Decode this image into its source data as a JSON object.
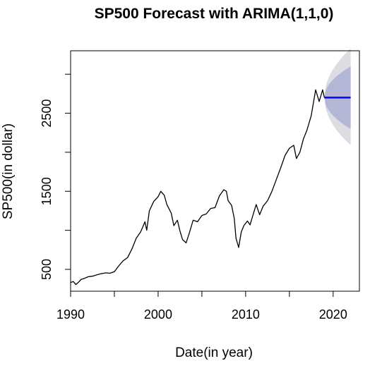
{
  "chart_data": {
    "type": "line",
    "title": "SP500 Forecast with ARIMA(1,1,0)",
    "xlabel": "Date(in year)",
    "ylabel": "SP500(in dollar)",
    "xlim": [
      1990,
      2023
    ],
    "ylim": [
      220,
      3300
    ],
    "x_ticks": [
      1990,
      1995,
      2000,
      2005,
      2010,
      2015,
      2020
    ],
    "x_tick_labels": [
      "1990",
      "",
      "2000",
      "",
      "2010",
      "",
      "2020"
    ],
    "y_ticks": [
      500,
      1000,
      1500,
      2000,
      2500,
      3000
    ],
    "y_tick_labels": [
      "500",
      "",
      "1500",
      "",
      "2500",
      ""
    ],
    "series": [
      {
        "type": "line",
        "color": "#000000",
        "points": [
          [
            1990.0,
            330
          ],
          [
            1990.3,
            345
          ],
          [
            1990.6,
            305
          ],
          [
            1990.9,
            335
          ],
          [
            1991.2,
            372
          ],
          [
            1991.6,
            385
          ],
          [
            1992.0,
            405
          ],
          [
            1992.5,
            412
          ],
          [
            1993.0,
            430
          ],
          [
            1993.5,
            445
          ],
          [
            1994.0,
            455
          ],
          [
            1994.5,
            450
          ],
          [
            1995.0,
            470
          ],
          [
            1995.5,
            545
          ],
          [
            1996.0,
            610
          ],
          [
            1996.5,
            650
          ],
          [
            1997.0,
            760
          ],
          [
            1997.5,
            900
          ],
          [
            1998.0,
            980
          ],
          [
            1998.5,
            1110
          ],
          [
            1998.7,
            1000
          ],
          [
            1999.0,
            1250
          ],
          [
            1999.5,
            1370
          ],
          [
            2000.0,
            1430
          ],
          [
            2000.3,
            1500
          ],
          [
            2000.7,
            1450
          ],
          [
            2001.0,
            1330
          ],
          [
            2001.5,
            1220
          ],
          [
            2001.8,
            1060
          ],
          [
            2002.2,
            1130
          ],
          [
            2002.5,
            990
          ],
          [
            2002.8,
            880
          ],
          [
            2003.2,
            840
          ],
          [
            2003.6,
            980
          ],
          [
            2004.0,
            1130
          ],
          [
            2004.5,
            1110
          ],
          [
            2005.0,
            1190
          ],
          [
            2005.5,
            1210
          ],
          [
            2006.0,
            1280
          ],
          [
            2006.5,
            1290
          ],
          [
            2007.0,
            1440
          ],
          [
            2007.5,
            1520
          ],
          [
            2007.8,
            1500
          ],
          [
            2008.0,
            1380
          ],
          [
            2008.4,
            1320
          ],
          [
            2008.7,
            1150
          ],
          [
            2008.9,
            900
          ],
          [
            2009.2,
            780
          ],
          [
            2009.5,
            980
          ],
          [
            2009.8,
            1060
          ],
          [
            2010.2,
            1120
          ],
          [
            2010.5,
            1070
          ],
          [
            2010.8,
            1180
          ],
          [
            2011.2,
            1330
          ],
          [
            2011.6,
            1200
          ],
          [
            2012.0,
            1310
          ],
          [
            2012.5,
            1380
          ],
          [
            2013.0,
            1500
          ],
          [
            2013.5,
            1650
          ],
          [
            2014.0,
            1800
          ],
          [
            2014.5,
            1960
          ],
          [
            2015.0,
            2050
          ],
          [
            2015.5,
            2090
          ],
          [
            2015.8,
            1920
          ],
          [
            2016.2,
            2000
          ],
          [
            2016.6,
            2170
          ],
          [
            2017.0,
            2280
          ],
          [
            2017.5,
            2470
          ],
          [
            2018.0,
            2800
          ],
          [
            2018.4,
            2650
          ],
          [
            2018.8,
            2800
          ],
          [
            2019.0,
            2700
          ]
        ]
      },
      {
        "type": "forecast-line",
        "color": "#0000ff",
        "points": [
          [
            2019.0,
            2700
          ],
          [
            2022.0,
            2700
          ]
        ]
      }
    ],
    "forecast_intervals": [
      {
        "level": "outer",
        "color": "#dcdce2",
        "x": [
          2019.0,
          2022.0
        ],
        "upper": [
          2700,
          3330
        ],
        "lower": [
          2700,
          2090
        ]
      },
      {
        "level": "inner",
        "color": "#b3b6d4",
        "x": [
          2019.0,
          2022.0
        ],
        "upper": [
          2700,
          3100
        ],
        "lower": [
          2700,
          2300
        ]
      }
    ]
  }
}
